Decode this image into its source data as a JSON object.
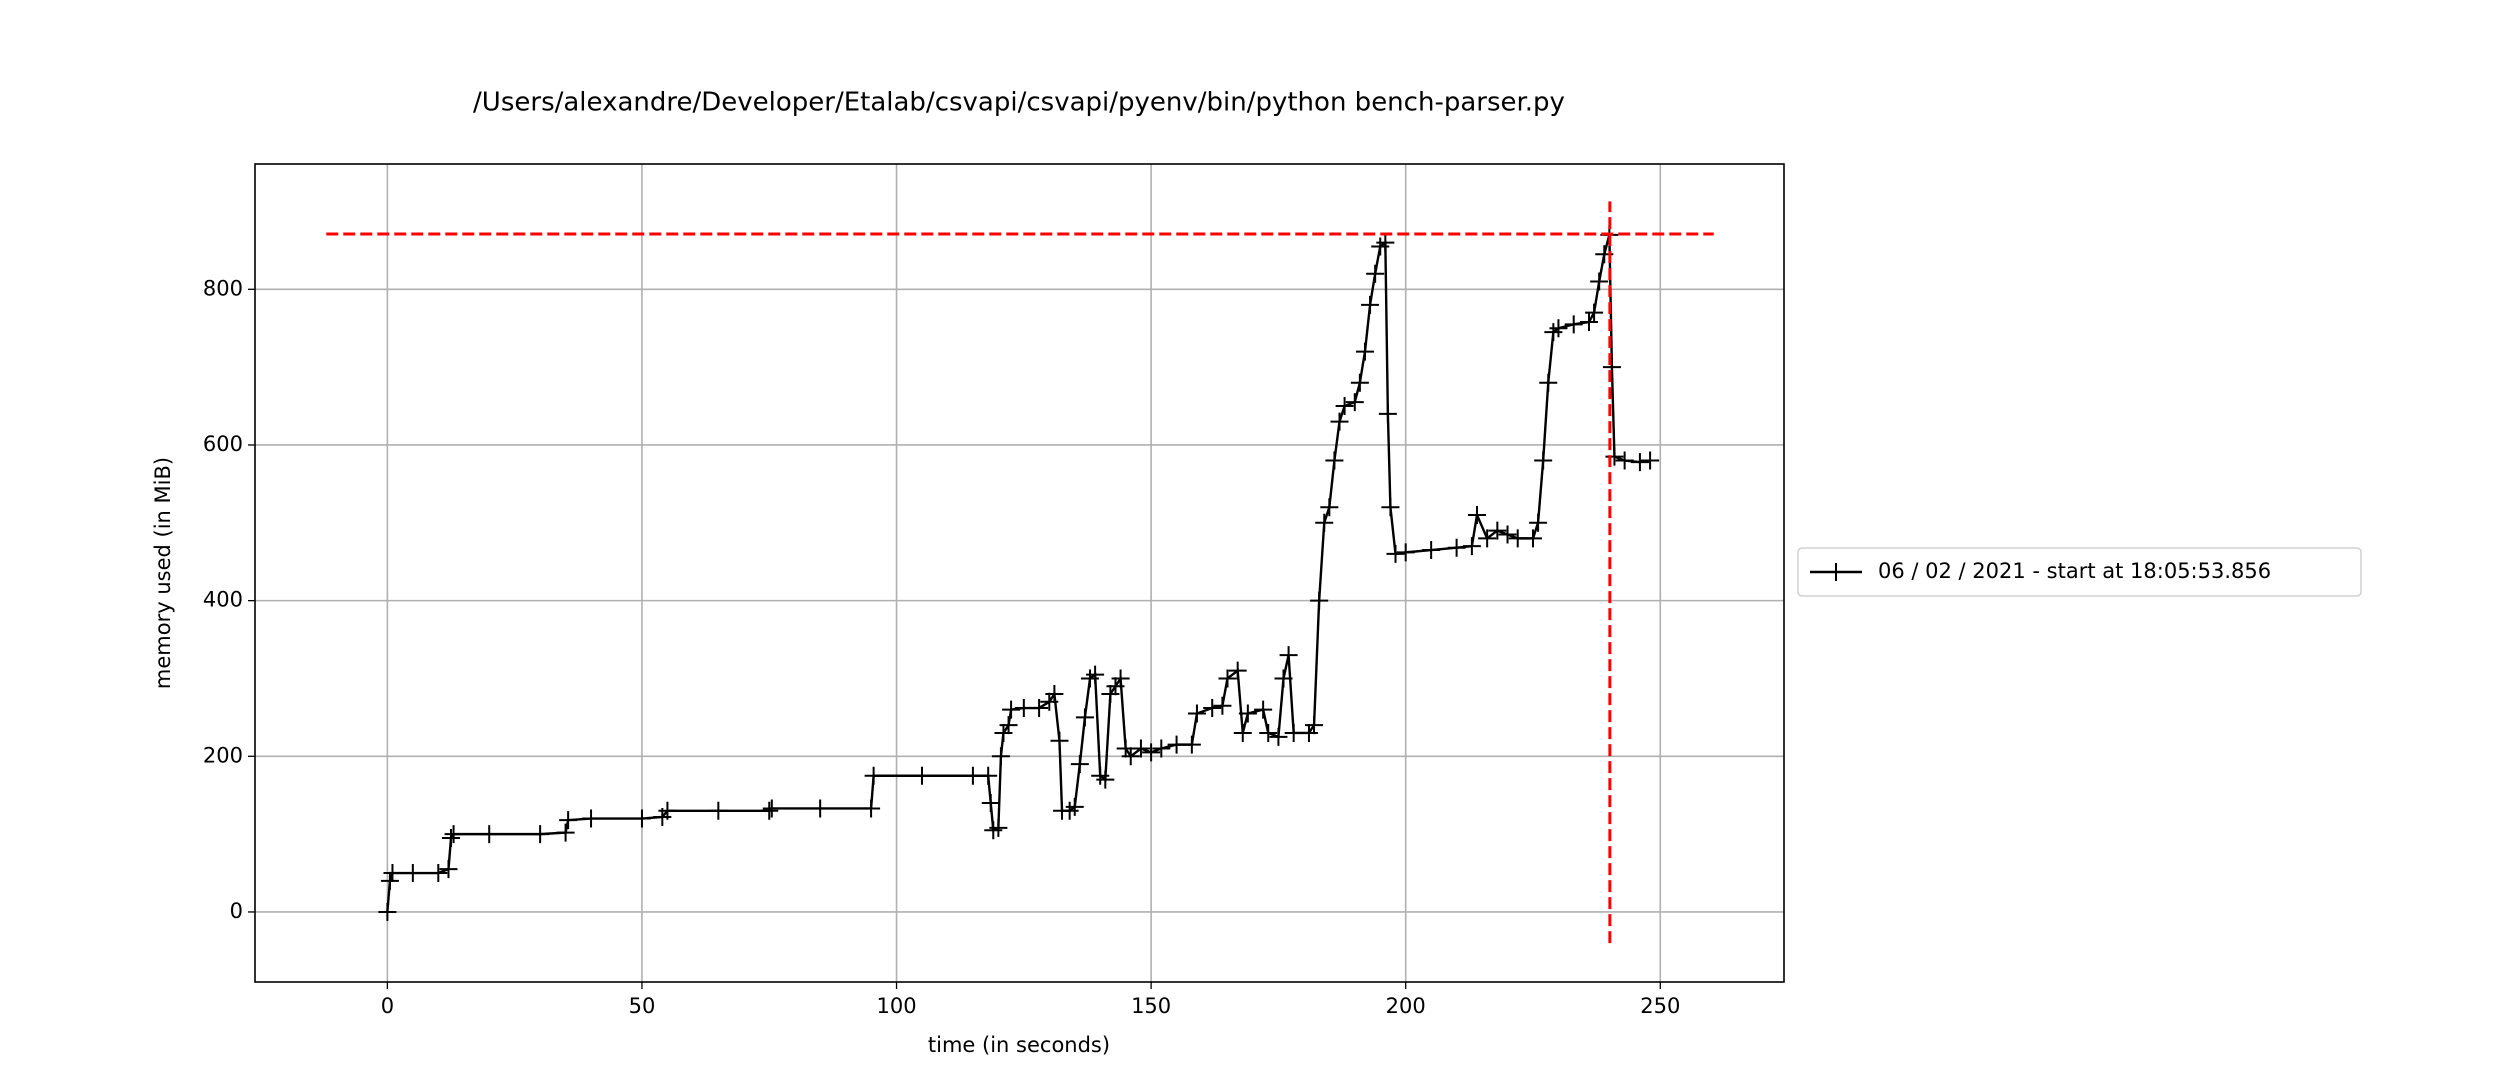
{
  "chart_data": {
    "type": "line",
    "title": "/Users/alexandre/Developer/Etalab/csvapi/csvapi/pyenv/bin/python bench-parser.py",
    "xlabel": "time (in seconds)",
    "ylabel": "memory used (in MiB)",
    "x": [
      0,
      0.5,
      1,
      5,
      10,
      12,
      12.5,
      13,
      20,
      30,
      35,
      35.5,
      40,
      50,
      54,
      55,
      65,
      75,
      75.5,
      85,
      95,
      95.5,
      105,
      115,
      118,
      118.5,
      119,
      120,
      120.5,
      121,
      122,
      122.5,
      125,
      128,
      130,
      131,
      132,
      132.5,
      134,
      135,
      136,
      137,
      138,
      139,
      140,
      141,
      142,
      143,
      144,
      145,
      146,
      148,
      150,
      152,
      155,
      158,
      159,
      162,
      164,
      165,
      167,
      168,
      169,
      172,
      173,
      175,
      176,
      177,
      178,
      181,
      182,
      183,
      184,
      185,
      186,
      187,
      188,
      190,
      191,
      192,
      193,
      194,
      195,
      196,
      196.5,
      197,
      198,
      200,
      205,
      210,
      213,
      214,
      216,
      218,
      220,
      222,
      225,
      226,
      227,
      228,
      229,
      230,
      233,
      236,
      237,
      238,
      239,
      240,
      240.5,
      241,
      243,
      246,
      248
    ],
    "series": [
      {
        "name": "06 / 02 / 2021 - start at 18:05:53.856",
        "color": "#000000",
        "values": [
          0,
          40,
          50,
          50,
          50,
          55,
          95,
          100,
          100,
          100,
          102,
          118,
          120,
          120,
          122,
          130,
          130,
          130,
          133,
          133,
          133,
          175,
          175,
          175,
          175,
          140,
          105,
          108,
          200,
          230,
          240,
          260,
          262,
          262,
          270,
          280,
          220,
          130,
          130,
          135,
          190,
          250,
          300,
          305,
          175,
          170,
          280,
          290,
          300,
          210,
          200,
          210,
          205,
          210,
          215,
          215,
          255,
          262,
          265,
          300,
          310,
          230,
          255,
          260,
          230,
          225,
          300,
          330,
          230,
          230,
          240,
          400,
          500,
          520,
          580,
          630,
          650,
          655,
          680,
          720,
          780,
          820,
          855,
          860,
          640,
          520,
          460,
          462,
          465,
          468,
          470,
          510,
          480,
          490,
          485,
          480,
          480,
          500,
          580,
          680,
          745,
          750,
          755,
          758,
          770,
          810,
          845,
          870,
          700,
          585,
          580,
          578,
          580
        ]
      }
    ],
    "xlim": [
      -26,
      274.3
    ],
    "ylim": [
      -90,
      961
    ],
    "xticks": [
      0,
      50,
      100,
      150,
      200,
      250
    ],
    "yticks": [
      0,
      200,
      400,
      600,
      800
    ],
    "grid": true,
    "legend": "outside right",
    "reference_lines": [
      {
        "y": 871,
        "xmin": -12,
        "xmax": 260.5,
        "color": "#ff0000"
      },
      {
        "x": 240.1,
        "ymin": -40,
        "ymax": 913,
        "color": "#ff0000"
      }
    ]
  }
}
